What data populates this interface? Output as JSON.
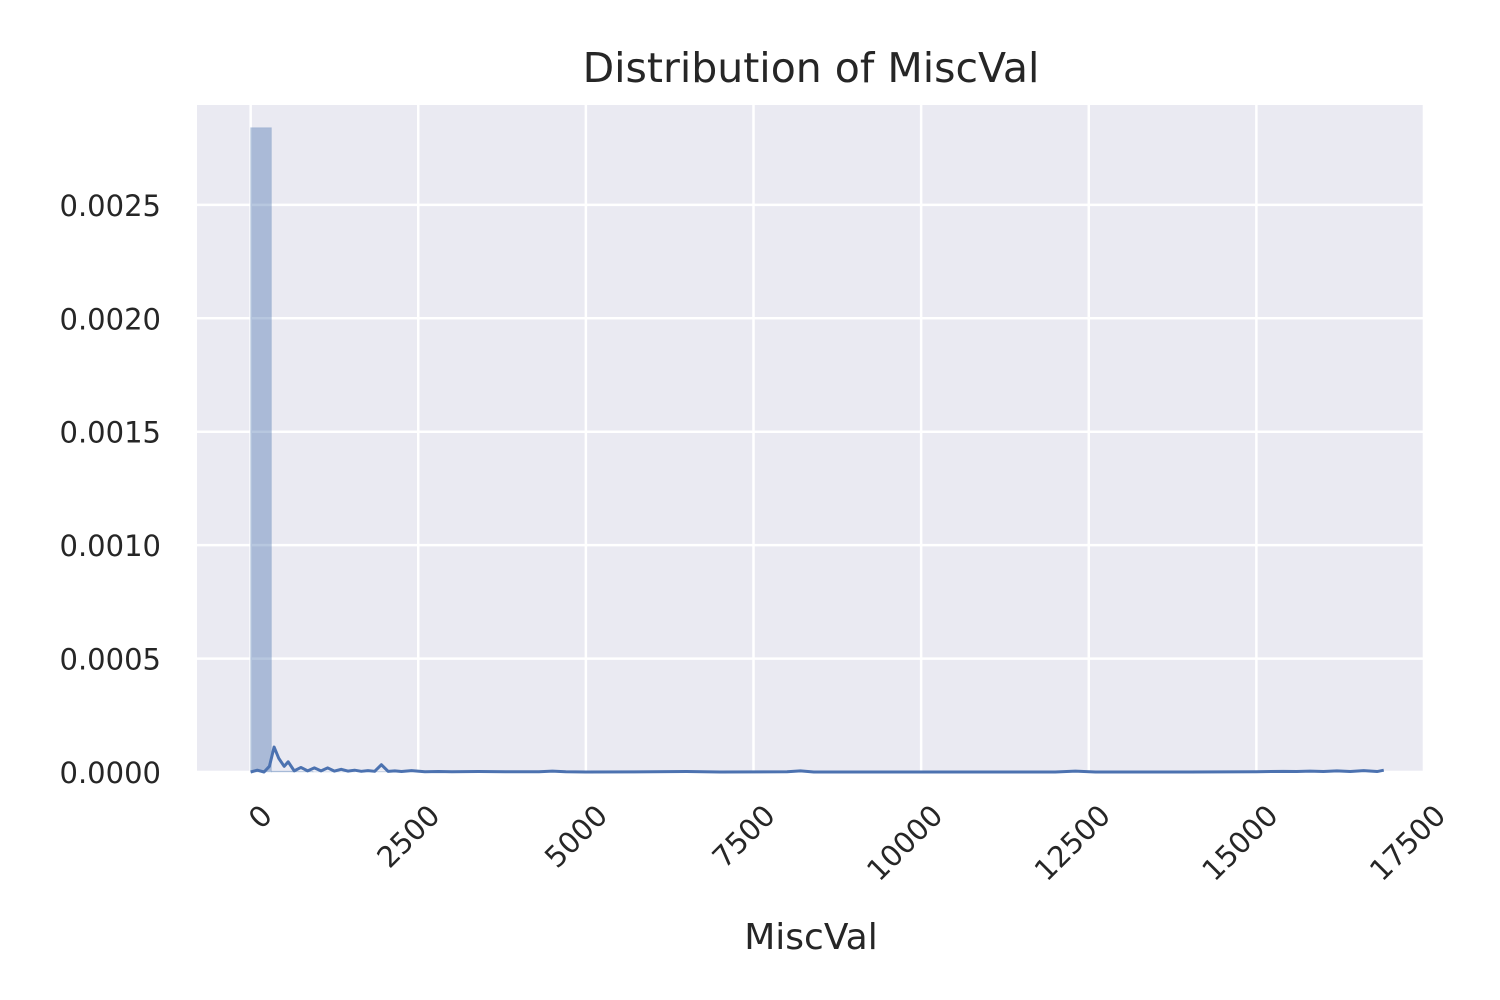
{
  "chart_data": {
    "type": "bar",
    "subtype": "histogram with density curve",
    "title": "Distribution of MiscVal",
    "xlabel": "MiscVal",
    "ylabel": "",
    "xlim": [
      -800,
      17500
    ],
    "ylim": [
      0,
      0.00294
    ],
    "x_ticks": [
      {
        "value": 0,
        "label": "0"
      },
      {
        "value": 2500,
        "label": "2500"
      },
      {
        "value": 5000,
        "label": "5000"
      },
      {
        "value": 7500,
        "label": "7500"
      },
      {
        "value": 10000,
        "label": "10000"
      },
      {
        "value": 12500,
        "label": "12500"
      },
      {
        "value": 15000,
        "label": "15000"
      },
      {
        "value": 17500,
        "label": "17500"
      }
    ],
    "x_tick_rotation": 45,
    "y_ticks": [
      {
        "value": 0,
        "label": "0.0000"
      },
      {
        "value": 0.0005,
        "label": "0.0005"
      },
      {
        "value": 0.001,
        "label": "0.0010"
      },
      {
        "value": 0.0015,
        "label": "0.0015"
      },
      {
        "value": 0.002,
        "label": "0.0020"
      },
      {
        "value": 0.0025,
        "label": "0.0025"
      }
    ],
    "grid": true,
    "background_color": "#eaeaf2",
    "grid_color": "#ffffff",
    "bar_color": "#4c72b0",
    "bar_opacity": 0.4,
    "line_color": "#4c72b0",
    "bins": [
      {
        "x0": 0,
        "x1": 310,
        "density": 0.00284
      },
      {
        "x0": 310,
        "x1": 620,
        "density": 4.5e-06
      },
      {
        "x0": 620,
        "x1": 930,
        "density": 2.5e-06
      },
      {
        "x0": 930,
        "x1": 1240,
        "density": 1e-06
      },
      {
        "x0": 1240,
        "x1": 1550,
        "density": 1e-06
      },
      {
        "x0": 1860,
        "x1": 2170,
        "density": 2e-06
      },
      {
        "x0": 2480,
        "x1": 2790,
        "density": 8e-07
      },
      {
        "x0": 15500,
        "x1": 15810,
        "density": 5e-07
      }
    ],
    "density_curve": {
      "x": [
        0,
        100,
        200,
        280,
        350,
        420,
        500,
        560,
        650,
        750,
        850,
        950,
        1050,
        1150,
        1250,
        1350,
        1450,
        1550,
        1650,
        1750,
        1850,
        1950,
        2050,
        2150,
        2250,
        2400,
        2600,
        2800,
        3000,
        3400,
        3800,
        4300,
        4500,
        4700,
        5000,
        6000,
        6500,
        7000,
        8000,
        8200,
        8400,
        9000,
        10000,
        11000,
        12000,
        12300,
        12600,
        13000,
        14000,
        15000,
        15400,
        15600,
        15800,
        16000,
        16200,
        16400,
        16600,
        16800,
        16900
      ],
      "y": [
        0,
        8e-06,
        0,
        2.5e-05,
        0.00011,
        6e-05,
        2.5e-05,
        4.5e-05,
        5e-06,
        2e-05,
        5e-06,
        1.8e-05,
        5e-06,
        1.8e-05,
        4e-06,
        1.2e-05,
        4e-06,
        8e-06,
        3e-06,
        6e-06,
        3e-06,
        3.2e-05,
        3e-06,
        5e-06,
        2e-06,
        6e-06,
        1e-06,
        2e-06,
        1e-06,
        2e-06,
        1e-06,
        1e-06,
        4e-06,
        1e-06,
        0,
        1e-06,
        2e-06,
        0,
        1e-06,
        5e-06,
        0,
        0,
        0,
        0,
        0,
        4e-06,
        0,
        0,
        0,
        1e-06,
        3e-06,
        2e-06,
        4e-06,
        2e-06,
        5e-06,
        2e-06,
        6e-06,
        2e-06,
        8e-06
      ]
    }
  }
}
